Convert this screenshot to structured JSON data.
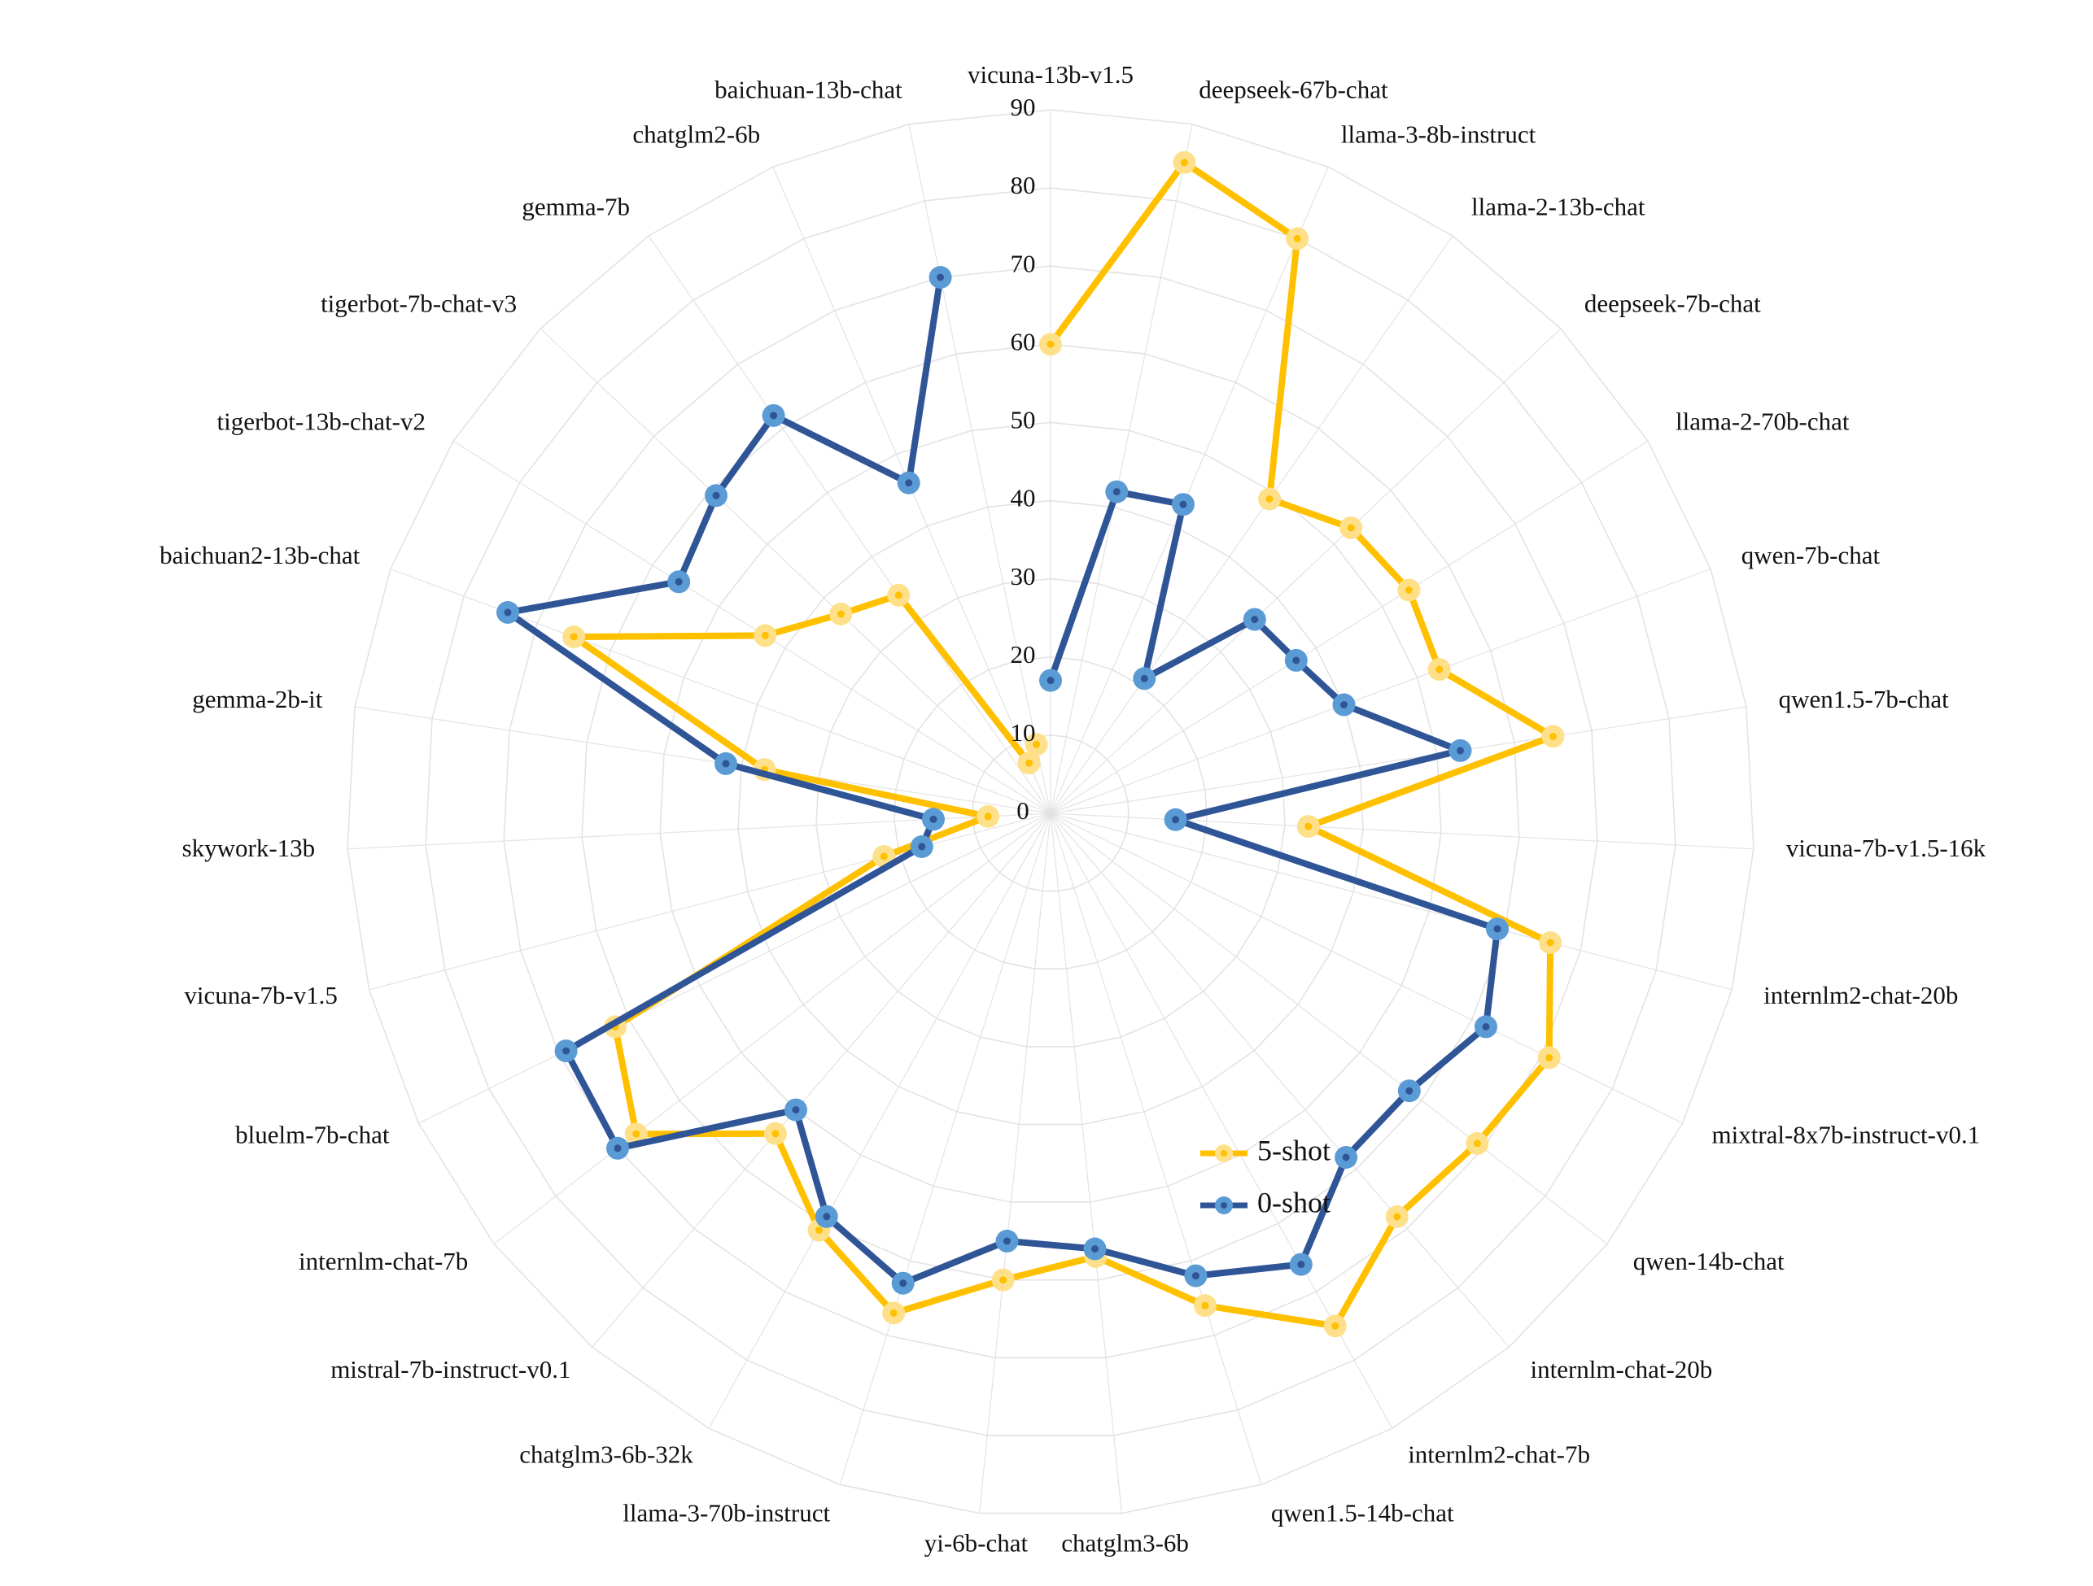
{
  "chart_data": {
    "type": "radar",
    "rlim": [
      0,
      90
    ],
    "r_ticks": [
      0,
      10,
      20,
      30,
      40,
      50,
      60,
      70,
      80,
      90
    ],
    "grid": true,
    "legend_position": "bottom-right",
    "categories": [
      "vicuna-13b-v1.5",
      "deepseek-67b-chat",
      "llama-3-8b-instruct",
      "llama-2-13b-chat",
      "deepseek-7b-chat",
      "llama-2-70b-chat",
      "qwen-7b-chat",
      "qwen1.5-7b-chat",
      "vicuna-7b-v1.5-16k",
      "internlm2-chat-20b",
      "mixtral-8x7b-instruct-v0.1",
      "qwen-14b-chat",
      "internlm-chat-20b",
      "internlm2-chat-7b",
      "qwen1.5-14b-chat",
      "chatglm3-6b",
      "yi-6b-chat",
      "llama-3-70b-instruct",
      "chatglm3-6b-32k",
      "mistral-7b-instruct-v0.1",
      "internlm-chat-7b",
      "bluelm-7b-chat",
      "vicuna-7b-v1.5",
      "skywork-13b",
      "gemma-2b-it",
      "baichuan2-13b-chat",
      "tigerbot-13b-chat-v2",
      "tigerbot-7b-chat-v3",
      "gemma-7b",
      "chatglm2-6b",
      "baichuan-13b-chat"
    ],
    "series": [
      {
        "name": "5-shot",
        "color": "#ffc000",
        "marker_color": "#ffe08a",
        "values": [
          60,
          85,
          80,
          49,
          53,
          54,
          53,
          65,
          33,
          66,
          71,
          69,
          68,
          75,
          66,
          57,
          60,
          67,
          61,
          54,
          67,
          62,
          22,
          8,
          37,
          65,
          43,
          37,
          34,
          7,
          9
        ]
      },
      {
        "name": "0-shot",
        "color": "#2f5597",
        "marker_color": "#5b9bd5",
        "values": [
          17,
          42,
          43,
          21,
          36,
          37,
          40,
          53,
          16,
          59,
          62,
          58,
          58,
          66,
          62,
          56,
          55,
          63,
          59,
          50,
          70,
          69,
          17,
          15,
          42,
          74,
          56,
          59,
          62,
          46,
          70
        ]
      }
    ]
  }
}
